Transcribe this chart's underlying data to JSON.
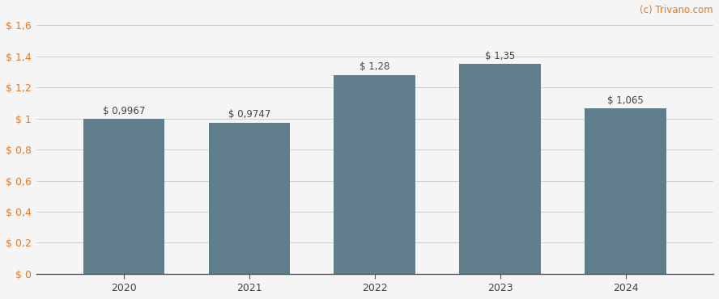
{
  "categories": [
    "2020",
    "2021",
    "2022",
    "2023",
    "2024"
  ],
  "values": [
    0.9967,
    0.9747,
    1.28,
    1.35,
    1.065
  ],
  "labels": [
    "$ 0,9967",
    "$ 0,9747",
    "$ 1,28",
    "$ 1,35",
    "$ 1,065"
  ],
  "bar_color": "#607d8b",
  "background_color": "#f5f5f5",
  "ylim": [
    0,
    1.6
  ],
  "yticks": [
    0,
    0.2,
    0.4,
    0.6,
    0.8,
    1.0,
    1.2,
    1.4,
    1.6
  ],
  "ytick_labels": [
    "$ 0",
    "$ 0,2",
    "$ 0,4",
    "$ 0,6",
    "$ 0,8",
    "$ 1",
    "$ 1,2",
    "$ 1,4",
    "$ 1,6"
  ],
  "watermark": "(c) Trivano.com",
  "watermark_color": "#e87722",
  "tick_label_color": "#e87722",
  "grid_color": "#d0d0d0",
  "label_fontsize": 8.5,
  "tick_fontsize": 9,
  "watermark_fontsize": 8.5,
  "bar_width": 0.65
}
